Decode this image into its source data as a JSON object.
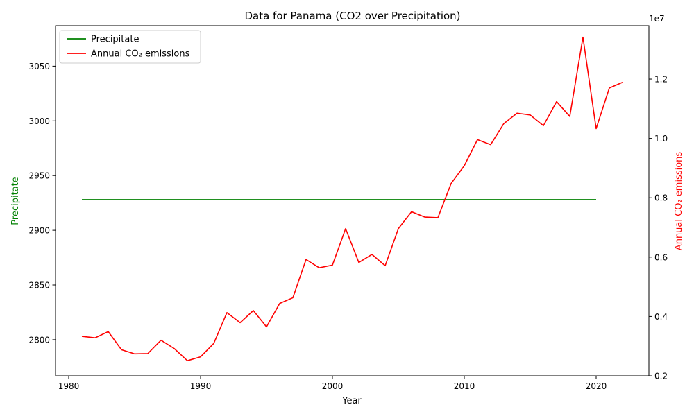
{
  "chart_data": {
    "type": "line",
    "title": "Data for Panama (CO2 over Precipitation)",
    "xlabel": "Year",
    "ylabel_left": "Precipitate",
    "ylabel_right": "Annual CO₂ emissions",
    "right_axis_offset": "1e7",
    "xlim": [
      1979,
      2024
    ],
    "ylim_left": [
      2767,
      3087
    ],
    "ylim_right": [
      0.2,
      1.38
    ],
    "x_ticks": [
      1980,
      1990,
      2000,
      2010,
      2020
    ],
    "y_ticks_left": [
      2800,
      2850,
      2900,
      2950,
      3000,
      3050
    ],
    "y_ticks_right": [
      0.2,
      0.4,
      0.6,
      0.8,
      1.0,
      1.2
    ],
    "grid": false,
    "legend_position": "top-left",
    "series": [
      {
        "name": "Precipitate",
        "axis": "left",
        "color": "#008000",
        "x": [
          1981,
          2020
        ],
        "values": [
          2928,
          2928
        ]
      },
      {
        "name": "Annual CO₂ emissions",
        "axis": "right",
        "color": "#ff0000",
        "x": [
          1981,
          1982,
          1983,
          1984,
          1985,
          1986,
          1987,
          1988,
          1989,
          1990,
          1991,
          1992,
          1993,
          1994,
          1995,
          1996,
          1997,
          1998,
          1999,
          2000,
          2001,
          2002,
          2003,
          2004,
          2005,
          2006,
          2007,
          2008,
          2009,
          2010,
          2011,
          2012,
          2013,
          2014,
          2015,
          2016,
          2017,
          2018,
          2019,
          2020,
          2021,
          2022
        ],
        "values": [
          3330000,
          3280000,
          3490000,
          2880000,
          2740000,
          2750000,
          3200000,
          2920000,
          2510000,
          2640000,
          3090000,
          4130000,
          3790000,
          4200000,
          3650000,
          4440000,
          4630000,
          5920000,
          5640000,
          5730000,
          6960000,
          5820000,
          6090000,
          5710000,
          6960000,
          7530000,
          7350000,
          7330000,
          8480000,
          9080000,
          9960000,
          9790000,
          10500000,
          10850000,
          10790000,
          10430000,
          11240000,
          10740000,
          13410000,
          10330000,
          11700000,
          11890000
        ]
      }
    ]
  }
}
